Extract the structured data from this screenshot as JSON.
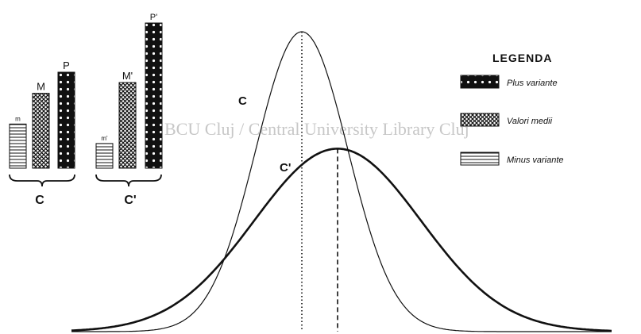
{
  "watermark": "BCU Cluj / Central University Library Cluj",
  "legend": {
    "title": "LEGENDA",
    "items": [
      {
        "key": "plus",
        "label": "Plus variante",
        "pattern": "plus-pattern"
      },
      {
        "key": "medi",
        "label": "Valori medii",
        "pattern": "medi-pattern"
      },
      {
        "key": "minus",
        "label": "Minus variante",
        "pattern": "minus-pattern"
      }
    ]
  },
  "colors": {
    "ink": "#111111",
    "paper": "#ffffff"
  },
  "chart_data": [
    {
      "type": "bar",
      "group": "C",
      "categories": [
        "m",
        "M",
        "P"
      ],
      "values": [
        0.46,
        0.78,
        1.0
      ],
      "patterns": [
        "minus",
        "medi",
        "plus"
      ]
    },
    {
      "type": "bar",
      "group": "C'",
      "categories": [
        "m'",
        "M'",
        "P'"
      ],
      "values": [
        0.17,
        0.59,
        1.0
      ],
      "patterns": [
        "minus",
        "medi",
        "plus"
      ]
    },
    {
      "type": "line",
      "series": [
        {
          "name": "C",
          "mean": 380,
          "sd": 58,
          "peak": 1.0,
          "style": "thin",
          "mean_line": "dotted"
        },
        {
          "name": "C'",
          "mean": 425,
          "sd": 105,
          "peak": 0.61,
          "style": "thick",
          "mean_line": "dashed"
        }
      ],
      "xlim": [
        90,
        770
      ],
      "ylim": [
        0,
        1
      ],
      "grid": false
    }
  ]
}
